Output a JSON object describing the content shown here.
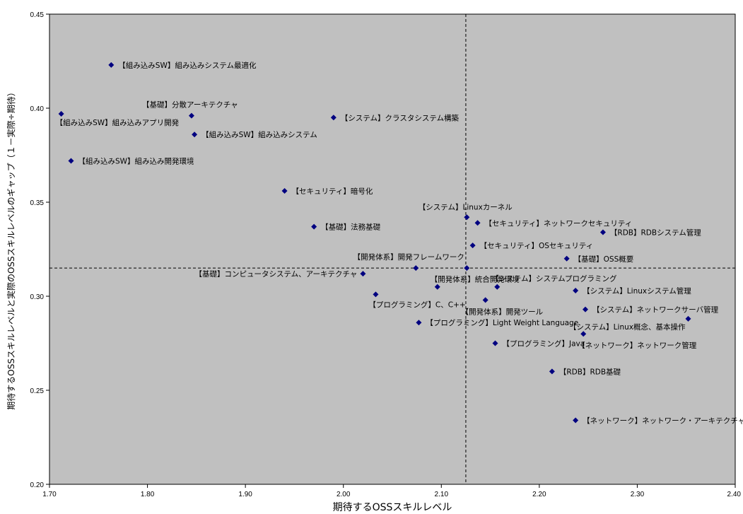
{
  "chart_data": {
    "type": "scatter",
    "title": "",
    "xlabel": "期待するOSSスキルレベル",
    "ylabel": "期待するOSSスキルレベルと実際のOSSスキルレベルのギャップ（１－実際÷期待）",
    "xlim": [
      1.7,
      2.4
    ],
    "ylim": [
      0.2,
      0.45
    ],
    "x_ticks": [
      "1.70",
      "1.80",
      "1.90",
      "2.00",
      "2.10",
      "2.20",
      "2.30",
      "2.40"
    ],
    "y_ticks": [
      "0.20",
      "0.25",
      "0.30",
      "0.35",
      "0.40",
      "0.45"
    ],
    "reference_lines": {
      "x": 2.125,
      "y": 0.315
    },
    "grid": false,
    "plot_background": "#c0c0c0",
    "marker_color": "#000080",
    "points": [
      {
        "x": 1.763,
        "y": 0.423,
        "label": "【組み込みSW】組み込みシステム最適化"
      },
      {
        "x": 1.845,
        "y": 0.396,
        "label": "【基礎】分散アーキテクチャ"
      },
      {
        "x": 1.712,
        "y": 0.397,
        "label": "【組み込みSW】組み込みアプリ開発"
      },
      {
        "x": 1.848,
        "y": 0.386,
        "label": "【組み込みSW】組み込みシステム"
      },
      {
        "x": 1.99,
        "y": 0.395,
        "label": "【システム】クラスタシステム構築"
      },
      {
        "x": 1.722,
        "y": 0.372,
        "label": "【組み込みSW】組み込み開発環境"
      },
      {
        "x": 1.94,
        "y": 0.356,
        "label": "【セキュリティ】暗号化"
      },
      {
        "x": 1.97,
        "y": 0.337,
        "label": "【基礎】法務基礎"
      },
      {
        "x": 2.126,
        "y": 0.342,
        "label": "【システム】Linuxカーネル"
      },
      {
        "x": 2.137,
        "y": 0.339,
        "label": "【セキュリティ】ネットワークセキュリティ"
      },
      {
        "x": 2.265,
        "y": 0.334,
        "label": "【RDB】RDBシステム管理"
      },
      {
        "x": 2.132,
        "y": 0.327,
        "label": "【セキュリティ】OSセキュリティ"
      },
      {
        "x": 2.228,
        "y": 0.32,
        "label": "【基礎】OSS概要"
      },
      {
        "x": 2.074,
        "y": 0.315,
        "label": "【開発体系】開発フレームワーク"
      },
      {
        "x": 2.126,
        "y": 0.315,
        "label": ""
      },
      {
        "x": 2.02,
        "y": 0.312,
        "label": "【基礎】コンピュータシステム、アーキテクチャ"
      },
      {
        "x": 2.157,
        "y": 0.305,
        "label": "【システム】システムプログラミング"
      },
      {
        "x": 2.096,
        "y": 0.305,
        "label": "【開発体系】統合開発環境"
      },
      {
        "x": 2.237,
        "y": 0.303,
        "label": "【システム】Linuxシステム管理"
      },
      {
        "x": 2.033,
        "y": 0.301,
        "label": "【プログラミング】C、C++"
      },
      {
        "x": 2.145,
        "y": 0.298,
        "label": "【開発体系】開発ツール"
      },
      {
        "x": 2.247,
        "y": 0.293,
        "label": "【システム】ネットワークサーバ管理"
      },
      {
        "x": 2.352,
        "y": 0.288,
        "label": "【システム】Linux概念、基本操作"
      },
      {
        "x": 2.077,
        "y": 0.286,
        "label": "【プログラミング】Light Weight Language"
      },
      {
        "x": 2.245,
        "y": 0.28,
        "label": "【ネットワーク】ネットワーク管理"
      },
      {
        "x": 2.155,
        "y": 0.275,
        "label": "【プログラミング】Java"
      },
      {
        "x": 2.213,
        "y": 0.26,
        "label": "【RDB】RDB基礎"
      },
      {
        "x": 2.237,
        "y": 0.234,
        "label": "【ネットワーク】ネットワーク・アーキテクチャ"
      }
    ]
  }
}
